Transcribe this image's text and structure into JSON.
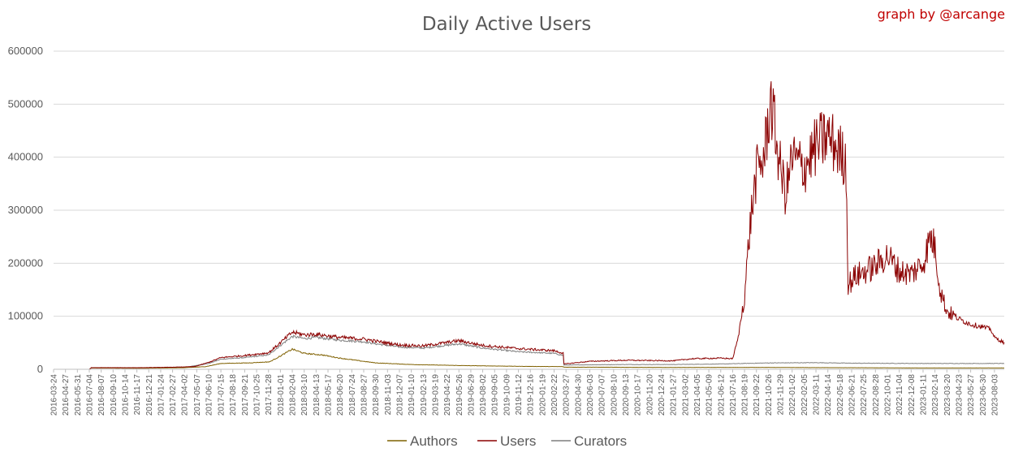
{
  "chart_data": {
    "type": "line",
    "title": "Daily Active Users",
    "credit": "graph by @arcange",
    "xlabel": "",
    "ylabel": "",
    "ylim": [
      0,
      600000
    ],
    "yticks": [
      "0",
      "100000",
      "200000",
      "300000",
      "400000",
      "500000",
      "600000"
    ],
    "grid": true,
    "legend_position": "bottom",
    "x_start": "2016-03-24",
    "x_end": "2023-08-31",
    "x_ticks": [
      "2016-03-24",
      "2016-04-27",
      "2016-05-31",
      "2016-07-04",
      "2016-08-07",
      "2016-09-10",
      "2016-10-14",
      "2016-11-17",
      "2016-12-21",
      "2017-01-24",
      "2017-02-27",
      "2017-04-02",
      "2017-05-07",
      "2017-06-10",
      "2017-07-15",
      "2017-08-18",
      "2017-09-21",
      "2017-10-25",
      "2017-11-28",
      "2018-01-01",
      "2018-02-04",
      "2018-03-10",
      "2018-04-13",
      "2018-05-17",
      "2018-06-20",
      "2018-07-24",
      "2018-08-27",
      "2018-09-30",
      "2018-11-03",
      "2018-12-07",
      "2019-01-10",
      "2019-02-13",
      "2019-03-19",
      "2019-04-22",
      "2019-05-26",
      "2019-06-29",
      "2019-08-02",
      "2019-09-05",
      "2019-10-09",
      "2019-11-12",
      "2019-12-16",
      "2020-01-19",
      "2020-02-22",
      "2020-03-27",
      "2020-04-30",
      "2020-06-03",
      "2020-07-07",
      "2020-08-10",
      "2020-09-13",
      "2020-10-17",
      "2020-11-20",
      "2020-12-24",
      "2021-01-27",
      "2021-03-02",
      "2021-04-05",
      "2021-05-09",
      "2021-06-12",
      "2021-07-16",
      "2021-08-19",
      "2021-09-22",
      "2021-10-26",
      "2021-11-29",
      "2022-01-02",
      "2022-02-05",
      "2022-03-11",
      "2022-04-14",
      "2022-05-18",
      "2022-06-21",
      "2022-07-25",
      "2022-08-28",
      "2022-10-01",
      "2022-11-04",
      "2022-12-08",
      "2023-01-11",
      "2023-02-14",
      "2023-03-20",
      "2023-04-23",
      "2023-05-27",
      "2023-06-30",
      "2023-08-03"
    ],
    "series": [
      {
        "name": "Authors",
        "color": "#7f6000",
        "points": [
          [
            "2016-03-24",
            0
          ],
          [
            "2016-07-04",
            0
          ],
          [
            "2016-07-10",
            2500
          ],
          [
            "2016-12-01",
            2000
          ],
          [
            "2017-04-01",
            3000
          ],
          [
            "2017-06-01",
            5000
          ],
          [
            "2017-07-15",
            11000
          ],
          [
            "2017-10-01",
            12000
          ],
          [
            "2017-12-01",
            14000
          ],
          [
            "2018-01-01",
            25000
          ],
          [
            "2018-02-04",
            38000
          ],
          [
            "2018-03-10",
            30000
          ],
          [
            "2018-05-01",
            27000
          ],
          [
            "2018-06-20",
            21000
          ],
          [
            "2018-08-27",
            15000
          ],
          [
            "2018-10-01",
            12000
          ],
          [
            "2019-01-10",
            9000
          ],
          [
            "2019-06-01",
            7000
          ],
          [
            "2019-12-01",
            5500
          ],
          [
            "2020-03-20",
            5000
          ],
          [
            "2020-03-21",
            4000
          ],
          [
            "2020-06-01",
            4000
          ],
          [
            "2021-01-01",
            3500
          ],
          [
            "2021-06-01",
            3500
          ],
          [
            "2021-10-26",
            3500
          ],
          [
            "2022-06-01",
            3000
          ],
          [
            "2023-01-01",
            2500
          ],
          [
            "2023-08-31",
            2500
          ]
        ]
      },
      {
        "name": "Users",
        "color": "#8b0000",
        "points": [
          [
            "2016-03-24",
            0
          ],
          [
            "2016-07-04",
            0
          ],
          [
            "2016-07-10",
            3000
          ],
          [
            "2016-12-01",
            3000
          ],
          [
            "2017-03-01",
            4000
          ],
          [
            "2017-05-01",
            5000
          ],
          [
            "2017-06-10",
            13000
          ],
          [
            "2017-07-15",
            22000
          ],
          [
            "2017-09-21",
            26000
          ],
          [
            "2017-11-28",
            31000
          ],
          [
            "2018-01-01",
            50000
          ],
          [
            "2018-02-04",
            70000
          ],
          [
            "2018-03-10",
            65000
          ],
          [
            "2018-04-13",
            66000
          ],
          [
            "2018-06-20",
            60000
          ],
          [
            "2018-08-27",
            57000
          ],
          [
            "2018-10-01",
            53000
          ],
          [
            "2018-12-07",
            46000
          ],
          [
            "2019-02-13",
            44000
          ],
          [
            "2019-05-26",
            54000
          ],
          [
            "2019-08-02",
            45000
          ],
          [
            "2019-11-12",
            39000
          ],
          [
            "2020-02-22",
            35000
          ],
          [
            "2020-03-20",
            30000
          ],
          [
            "2020-03-21",
            10000
          ],
          [
            "2020-06-03",
            15000
          ],
          [
            "2020-09-13",
            17000
          ],
          [
            "2021-01-27",
            16000
          ],
          [
            "2021-03-24",
            20000
          ],
          [
            "2021-06-12",
            21000
          ],
          [
            "2021-07-16",
            20000
          ],
          [
            "2021-08-01",
            60000
          ],
          [
            "2021-08-19",
            140000
          ],
          [
            "2021-09-05",
            280000
          ],
          [
            "2021-09-22",
            370000
          ],
          [
            "2021-10-14",
            400000
          ],
          [
            "2021-10-26",
            470000
          ],
          [
            "2021-11-01",
            510000
          ],
          [
            "2021-11-29",
            380000
          ],
          [
            "2021-12-15",
            330000
          ],
          [
            "2022-01-02",
            400000
          ],
          [
            "2022-02-05",
            380000
          ],
          [
            "2022-03-11",
            420000
          ],
          [
            "2022-04-14",
            440000
          ],
          [
            "2022-05-18",
            410000
          ],
          [
            "2022-06-05",
            390000
          ],
          [
            "2022-06-11",
            160000
          ],
          [
            "2022-07-01",
            175000
          ],
          [
            "2022-08-28",
            195000
          ],
          [
            "2022-10-01",
            215000
          ],
          [
            "2022-11-04",
            185000
          ],
          [
            "2022-12-08",
            180000
          ],
          [
            "2023-01-11",
            200000
          ],
          [
            "2023-02-01",
            250000
          ],
          [
            "2023-02-14",
            230000
          ],
          [
            "2023-03-01",
            150000
          ],
          [
            "2023-03-20",
            110000
          ],
          [
            "2023-04-23",
            95000
          ],
          [
            "2023-05-27",
            85000
          ],
          [
            "2023-06-30",
            80000
          ],
          [
            "2023-07-24",
            75000
          ],
          [
            "2023-08-03",
            60000
          ],
          [
            "2023-08-31",
            50000
          ]
        ]
      },
      {
        "name": "Curators",
        "color": "#7f7f7f",
        "points": [
          [
            "2016-03-24",
            0
          ],
          [
            "2016-07-04",
            0
          ],
          [
            "2016-07-10",
            2500
          ],
          [
            "2016-12-01",
            2500
          ],
          [
            "2017-04-01",
            3500
          ],
          [
            "2017-06-10",
            11000
          ],
          [
            "2017-07-15",
            19000
          ],
          [
            "2017-09-21",
            22000
          ],
          [
            "2017-11-28",
            27000
          ],
          [
            "2018-01-01",
            45000
          ],
          [
            "2018-02-04",
            62000
          ],
          [
            "2018-03-10",
            58000
          ],
          [
            "2018-04-13",
            60000
          ],
          [
            "2018-06-20",
            55000
          ],
          [
            "2018-08-27",
            52000
          ],
          [
            "2018-10-01",
            48000
          ],
          [
            "2018-12-07",
            42000
          ],
          [
            "2019-02-13",
            40000
          ],
          [
            "2019-05-26",
            48000
          ],
          [
            "2019-08-02",
            40000
          ],
          [
            "2019-11-12",
            33000
          ],
          [
            "2020-02-22",
            30000
          ],
          [
            "2020-03-20",
            26000
          ],
          [
            "2020-03-21",
            8000
          ],
          [
            "2020-06-03",
            8500
          ],
          [
            "2020-09-13",
            9000
          ],
          [
            "2021-01-27",
            9000
          ],
          [
            "2021-06-12",
            10000
          ],
          [
            "2021-10-26",
            12000
          ],
          [
            "2022-03-11",
            12500
          ],
          [
            "2022-06-21",
            11500
          ],
          [
            "2023-01-11",
            11000
          ],
          [
            "2023-08-31",
            11000
          ]
        ]
      }
    ]
  }
}
